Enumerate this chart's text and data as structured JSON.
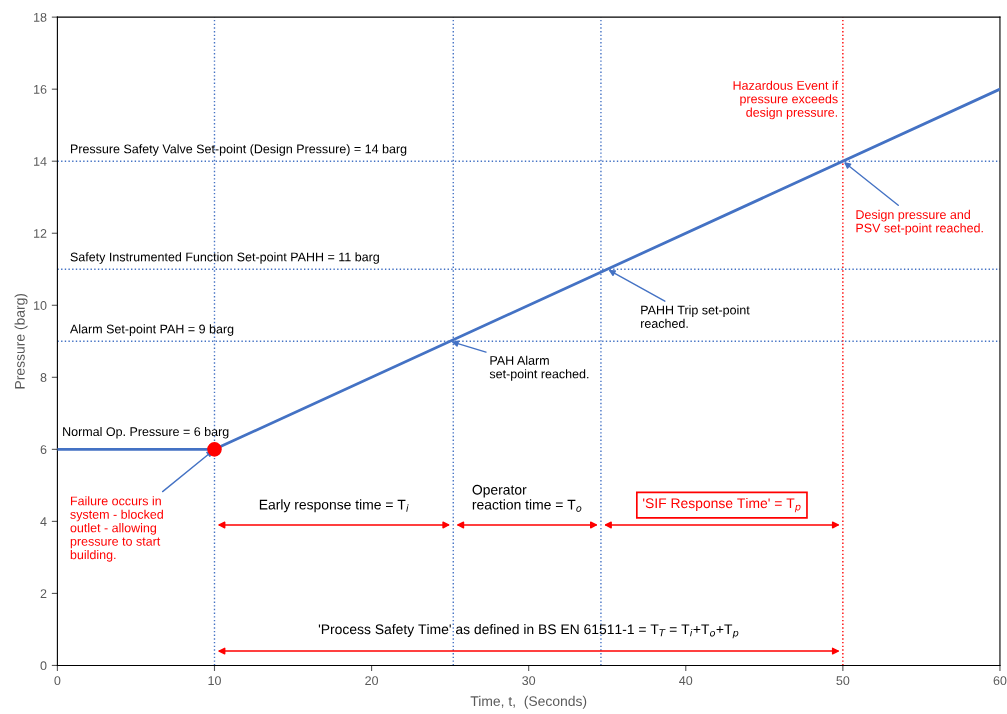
{
  "chart_data": {
    "type": "line",
    "xlabel": "Time, t,  (Seconds)",
    "ylabel": "Pressure (barg)",
    "xlim": [
      0,
      60
    ],
    "ylim": [
      0,
      18
    ],
    "xticks": [
      0,
      10,
      20,
      30,
      40,
      50,
      60
    ],
    "yticks": [
      0,
      2,
      4,
      6,
      8,
      10,
      12,
      14,
      16,
      18
    ],
    "grid": false,
    "legend": false,
    "series": [
      {
        "color": "#4472c4",
        "x": [
          0,
          10,
          60
        ],
        "values": [
          6,
          6,
          16
        ],
        "marker": "none",
        "line_style": "solid"
      },
      {
        "type": "scatter",
        "color": "#ff0000",
        "x": [
          10
        ],
        "values": [
          6
        ],
        "marker": "circle"
      }
    ],
    "ref_lines": [
      {
        "axis": "y",
        "value": 14,
        "label": "Pressure Safety Valve Set-point (Design Pressure) = 14 barg",
        "color": "#4472c4",
        "line_style": "dotted"
      },
      {
        "axis": "y",
        "value": 11,
        "label": "Safety Instrumented Function Set-point PAHH = 11 barg",
        "color": "#4472c4",
        "line_style": "dotted"
      },
      {
        "axis": "y",
        "value": 9,
        "label": "Alarm Set-point PAH = 9 barg",
        "color": "#4472c4",
        "line_style": "dotted"
      },
      {
        "axis": "x",
        "value": 10,
        "color": "#4472c4",
        "line_style": "dotted"
      },
      {
        "axis": "x",
        "value": 25.2,
        "color": "#4472c4",
        "line_style": "dotted"
      },
      {
        "axis": "x",
        "value": 34.6,
        "color": "#4472c4",
        "line_style": "dotted"
      },
      {
        "axis": "x",
        "value": 50,
        "label": "Hazardous Event if\npressure exceeds\ndesign pressure.",
        "color": "#ff0000",
        "line_style": "dotted"
      }
    ],
    "annotations": [
      {
        "text": "Normal Op. Pressure = 6 barg",
        "x": 0,
        "y": 6
      },
      {
        "text": "Failure occurs in\nsystem - blocked\noutlet - allowing\npressure to start\nbuilding.",
        "x": 10,
        "y": 6
      },
      {
        "text": "PAH Alarm\nset-point reached.",
        "x": 25,
        "y": 9
      },
      {
        "text": "PAHH Trip set-point\nreached.",
        "x": 35,
        "y": 11
      },
      {
        "text": "Design pressure and\nPSV set-point reached.",
        "x": 50,
        "y": 14
      },
      "Early response time = T$_{i}$",
      "Operator\nreaction time = T$_{o}$",
      "'SIF Response Time' = T$_{p}$",
      "'Process Safety Time' as defined in BS EN 61511-1 = T$_{T}$ = T$_{i}$+T$_{o}$+T$_{p}$"
    ]
  }
}
